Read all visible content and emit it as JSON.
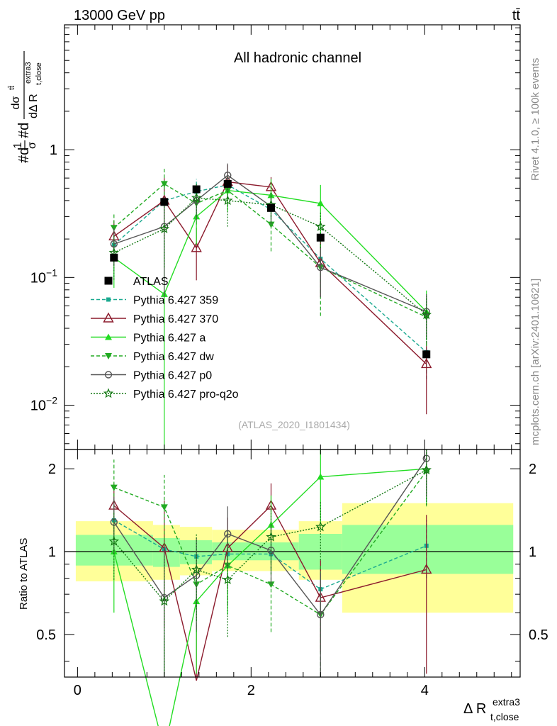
{
  "header": {
    "energy_label": "13000 GeV pp",
    "process_label": "tt̄",
    "rivet_label": "Rivet 4.1.0, ≥ 100k events",
    "mcplots_label": "mcplots.cern.ch [arXiv:2401.10621]"
  },
  "chart_data": [
    {
      "type": "line",
      "name": "main",
      "title": "All hadronic channel",
      "analysis_label": "(ATLAS_2020_I1801434)",
      "ylabel": "#d1/σ#d dσ^{tt̄} / dΔR_{t,close}^{extra3}",
      "ylabel_parts": {
        "prefix": "#d",
        "frac1_num": "1",
        "frac1_den": "σ",
        "mid": "#d",
        "frac2_num": "dσ",
        "frac2_num_sup": "tt̄",
        "frac2_den": "dΔ R",
        "frac2_den_sub": "t,close",
        "frac2_den_sup": "extra3"
      },
      "xlabel": "Δ R_{t,close}^{extra3}",
      "xlabel_parts": {
        "main": "Δ R",
        "sub": "t,close",
        "sup": "extra3"
      },
      "x_range": [
        -0.15,
        5.1
      ],
      "ylim": [
        0.0045,
        9.5
      ],
      "y_scale": "log",
      "y_ticks": [
        {
          "value": 0.01,
          "base": "10",
          "exp": "−2"
        },
        {
          "value": 0.1,
          "base": "10",
          "exp": "−1"
        },
        {
          "value": 1,
          "base": "1",
          "exp": ""
        }
      ],
      "x": [
        0.42,
        1.0,
        1.37,
        1.73,
        2.23,
        2.8,
        4.02
      ],
      "data_series": {
        "name": "ATLAS",
        "values": [
          0.143,
          0.39,
          0.49,
          0.54,
          0.35,
          0.205,
          0.025
        ]
      },
      "series": [
        {
          "name": "Pythia 6.427 359",
          "color": "#1aa98f",
          "dash": "5,3",
          "marker": "square-small",
          "values": [
            0.18,
            0.4,
            0.47,
            0.53,
            0.34,
            0.14,
            0.026
          ],
          "err_lo": [
            0.08,
            0.14,
            0.12,
            0.12,
            0.08,
            0.05,
            0.01
          ],
          "err_hi": [
            0.08,
            0.14,
            0.12,
            0.12,
            0.08,
            0.05,
            0.01
          ]
        },
        {
          "name": "Pythia 6.427 370",
          "color": "#8b1a2c",
          "dash": "",
          "marker": "triangle-open",
          "values": [
            0.21,
            0.4,
            0.17,
            0.56,
            0.51,
            0.13,
            0.021
          ],
          "err_lo": [
            0.07,
            0.2,
            0.075,
            0.2,
            0.15,
            0.06,
            0.0125
          ],
          "err_hi": [
            0.07,
            0.2,
            0.075,
            0.2,
            0.1,
            0.06,
            0.01
          ]
        },
        {
          "name": "Pythia 6.427 a",
          "color": "#22dd22",
          "dash": "",
          "marker": "triangle-filled",
          "values": [
            0.143,
            0.074,
            0.3,
            0.48,
            0.44,
            0.38,
            0.054
          ],
          "err_lo": [
            0.06,
            0.073,
            0.12,
            0.15,
            0.15,
            0.18,
            0.02
          ],
          "err_hi": [
            0.06,
            0.12,
            0.12,
            0.15,
            0.15,
            0.15,
            0.025
          ]
        },
        {
          "name": "Pythia 6.427 dw",
          "color": "#22aa22",
          "dash": "5,3",
          "marker": "triangle-down-filled",
          "values": [
            0.245,
            0.54,
            0.38,
            0.48,
            0.26,
            0.12,
            0.049
          ],
          "err_lo": [
            0.07,
            0.18,
            0.12,
            0.12,
            0.1,
            0.07,
            0.02
          ],
          "err_hi": [
            0.07,
            0.18,
            0.12,
            0.12,
            0.1,
            0.07,
            0.02
          ]
        },
        {
          "name": "Pythia 6.427 p0",
          "color": "#555555",
          "dash": "",
          "marker": "circle-open",
          "values": [
            0.183,
            0.25,
            0.4,
            0.63,
            0.36,
            0.12,
            0.054
          ],
          "err_lo": [
            0.06,
            0.18,
            0.12,
            0.15,
            0.1,
            0.05,
            0.02
          ],
          "err_hi": [
            0.06,
            0.18,
            0.12,
            0.15,
            0.1,
            0.05,
            0.02
          ]
        },
        {
          "name": "Pythia 6.427 pro-q2o",
          "color": "#117711",
          "dash": "2,2",
          "marker": "star",
          "values": [
            0.156,
            0.24,
            0.42,
            0.4,
            0.37,
            0.25,
            0.051
          ],
          "err_lo": [
            0.06,
            0.12,
            0.12,
            0.15,
            0.1,
            0.08,
            0.02
          ],
          "err_hi": [
            0.06,
            0.12,
            0.12,
            0.15,
            0.1,
            0.08,
            0.02
          ]
        }
      ]
    },
    {
      "type": "line",
      "name": "ratio",
      "ylabel": "Ratio to ATLAS",
      "ylim": [
        0.35,
        2.35
      ],
      "y_scale": "log",
      "y_ticks": [
        {
          "value": 0.5,
          "label": "0.5"
        },
        {
          "value": 1,
          "label": "1"
        },
        {
          "value": 2,
          "label": "2"
        }
      ],
      "x_ticks": [
        {
          "value": 0,
          "label": "0"
        },
        {
          "value": 2,
          "label": "2"
        },
        {
          "value": 4,
          "label": "4"
        }
      ],
      "bins": [
        -0.02,
        0.87,
        1.18,
        1.55,
        2.55,
        3.05,
        5.02
      ],
      "band_inner": [
        [
          0.89,
          1.15
        ],
        [
          0.88,
          1.12
        ],
        [
          0.9,
          1.1
        ],
        [
          0.93,
          1.08
        ],
        [
          0.86,
          1.16
        ],
        [
          0.83,
          1.25
        ]
      ],
      "band_outer": [
        [
          0.78,
          1.29
        ],
        [
          0.79,
          1.25
        ],
        [
          0.82,
          1.23
        ],
        [
          0.85,
          1.2
        ],
        [
          0.79,
          1.29
        ],
        [
          0.6,
          1.5
        ]
      ],
      "series": [
        {
          "name": "Pythia 6.427 359",
          "values": [
            1.3,
            1.02,
            0.96,
            0.98,
            0.98,
            0.73,
            1.05
          ],
          "err_lo": [
            0.15,
            0.15,
            0.12,
            0.12,
            0.12,
            0.15,
            0.25
          ],
          "err_hi": [
            0.15,
            0.15,
            0.12,
            0.12,
            0.12,
            0.15,
            0.25
          ]
        },
        {
          "name": "Pythia 6.427 370",
          "values": [
            1.47,
            1.03,
            0.34,
            1.03,
            1.47,
            0.68,
            0.86
          ],
          "err_lo": [
            0.3,
            0.5,
            0.2,
            0.3,
            0.3,
            0.25,
            0.5
          ],
          "err_hi": [
            0.3,
            0.5,
            0.2,
            0.3,
            0.3,
            0.25,
            0.5
          ]
        },
        {
          "name": "Pythia 6.427 a",
          "values": [
            1.0,
            0.19,
            0.66,
            0.89,
            1.25,
            1.87,
            2.0
          ],
          "err_lo": [
            0.4,
            0.18,
            0.3,
            0.3,
            0.35,
            0.6,
            0.5
          ],
          "err_hi": [
            0.4,
            0.3,
            0.3,
            0.3,
            0.35,
            0.5,
            0.5
          ]
        },
        {
          "name": "Pythia 6.427 dw",
          "values": [
            1.71,
            1.45,
            0.76,
            0.89,
            0.76,
            0.59,
            1.96
          ],
          "err_lo": [
            0.4,
            0.4,
            0.25,
            0.25,
            0.25,
            0.3,
            0.5
          ],
          "err_hi": [
            0.45,
            0.45,
            0.25,
            0.25,
            0.25,
            0.3,
            0.5
          ]
        },
        {
          "name": "Pythia 6.427 p0",
          "values": [
            1.28,
            0.68,
            0.82,
            1.16,
            1.01,
            0.59,
            2.18
          ],
          "err_lo": [
            0.3,
            0.35,
            0.3,
            0.3,
            0.25,
            0.25,
            0.6
          ],
          "err_hi": [
            0.3,
            0.35,
            0.3,
            0.3,
            0.25,
            0.25,
            0.6
          ]
        },
        {
          "name": "Pythia 6.427 pro-q2o",
          "values": [
            1.09,
            0.66,
            0.86,
            0.79,
            1.13,
            1.23,
            1.98
          ],
          "err_lo": [
            0.3,
            0.3,
            0.3,
            0.3,
            0.3,
            0.3,
            0.5
          ],
          "err_hi": [
            0.3,
            0.3,
            0.3,
            0.3,
            0.3,
            0.3,
            0.5
          ]
        }
      ]
    }
  ]
}
